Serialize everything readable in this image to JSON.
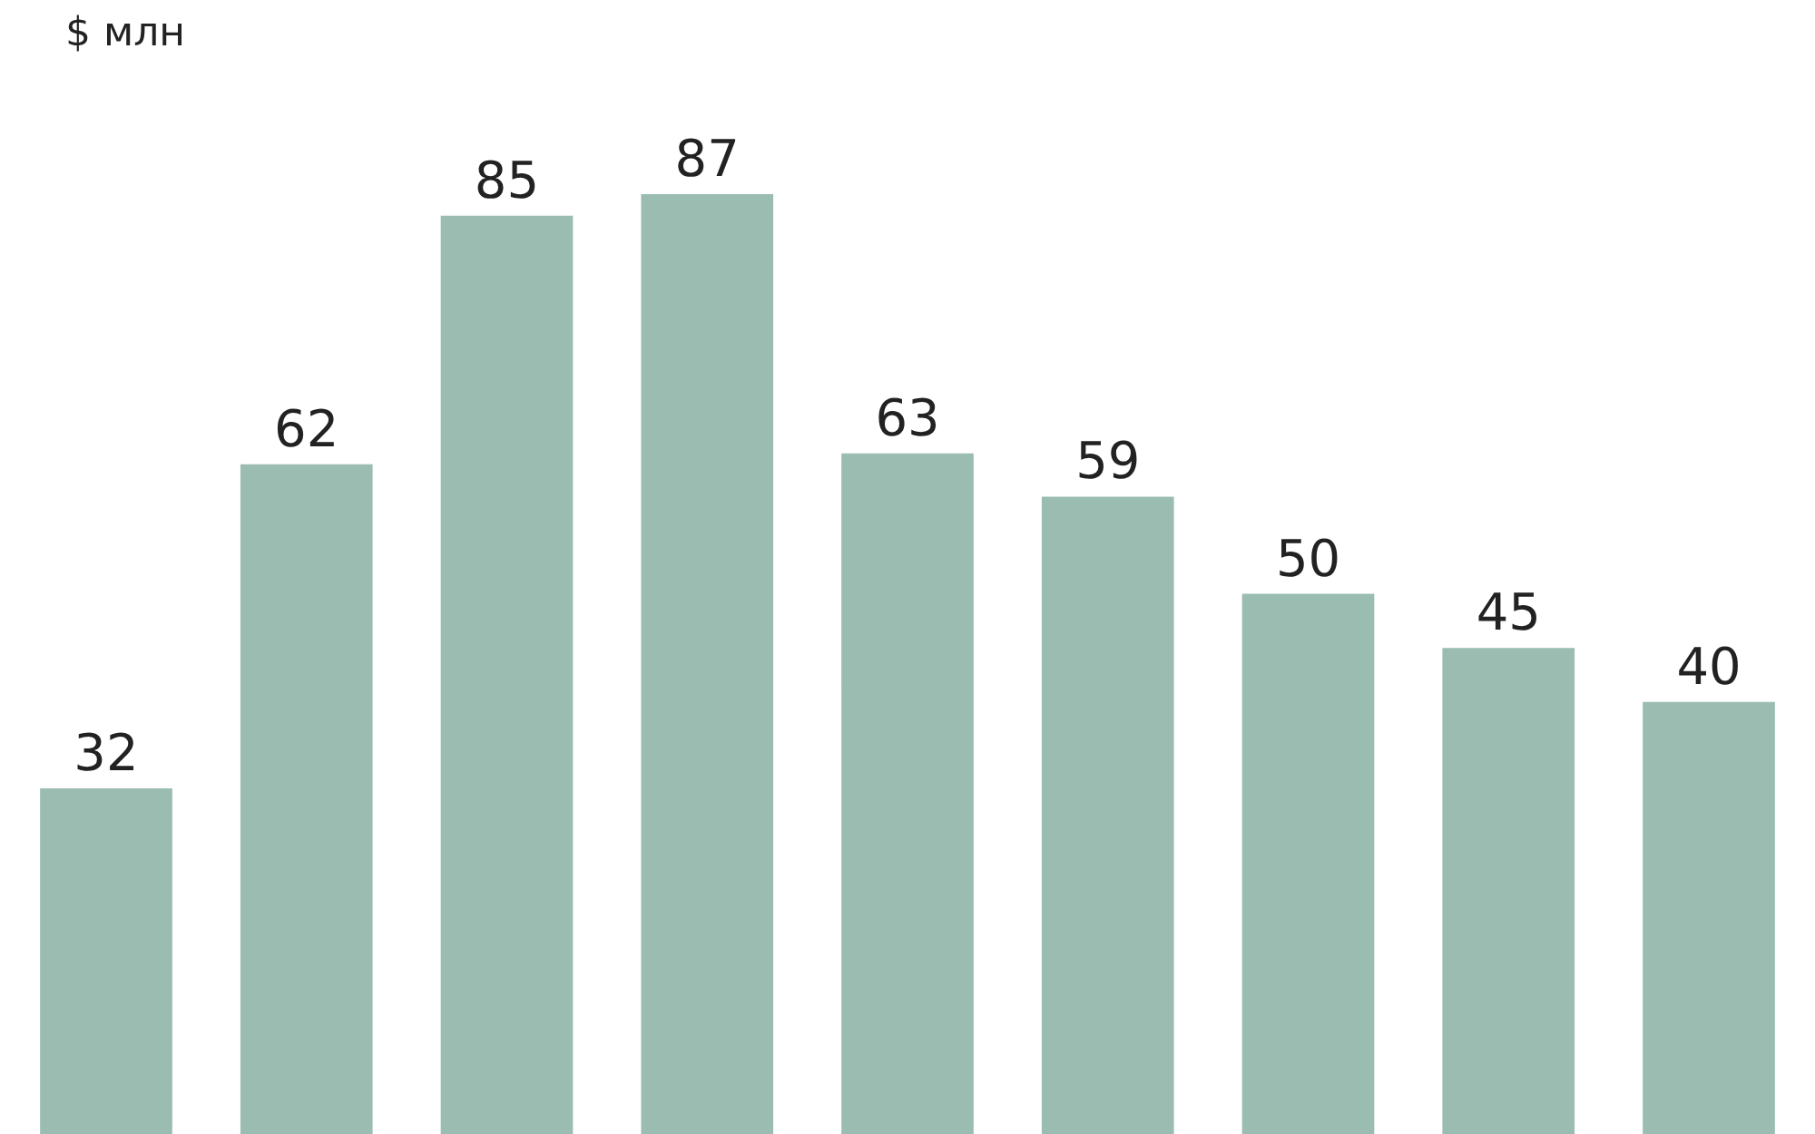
{
  "chart_data": {
    "type": "bar",
    "ylabel": "$ млн",
    "categories": [
      null,
      null,
      null,
      null,
      null,
      null,
      null,
      null,
      null
    ],
    "values": [
      32,
      62,
      85,
      87,
      63,
      59,
      50,
      45,
      40
    ],
    "color": "#9bbdb1",
    "data_labels": true,
    "grid": false
  }
}
